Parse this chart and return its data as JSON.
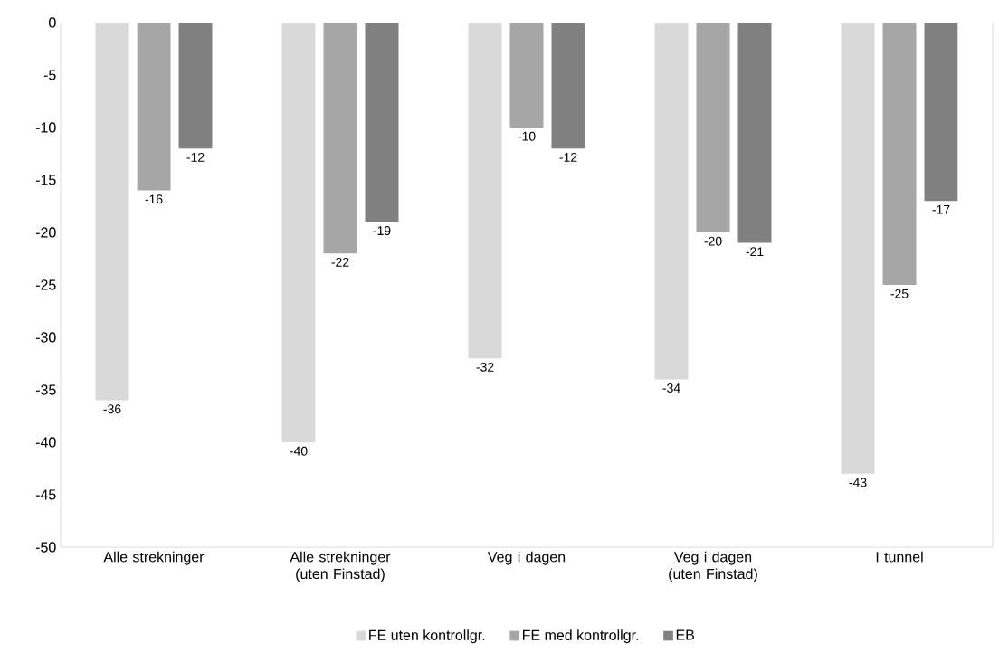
{
  "chart_data": {
    "type": "bar",
    "categories": [
      "Alle strekninger",
      "Alle strekninger (uten Finstad)",
      "Veg i dagen",
      "Veg i dagen (uten Finstad)",
      "I tunnel"
    ],
    "series": [
      {
        "name": "FE uten kontrollgr.",
        "color": "#d9d9d9",
        "values": [
          -36,
          -40,
          -32,
          -34,
          -43
        ]
      },
      {
        "name": "FE med kontrollgr.",
        "color": "#a6a6a6",
        "values": [
          -16,
          -22,
          -10,
          -20,
          -25
        ]
      },
      {
        "name": "EB",
        "color": "#808080",
        "values": [
          -12,
          -19,
          -12,
          -21,
          -17
        ]
      }
    ],
    "ylim": [
      -50,
      0
    ],
    "yticks": [
      -50,
      -45,
      -40,
      -35,
      -30,
      -25,
      -20,
      -15,
      -10,
      -5,
      0
    ],
    "data_labels": true,
    "legend": "bottom"
  }
}
